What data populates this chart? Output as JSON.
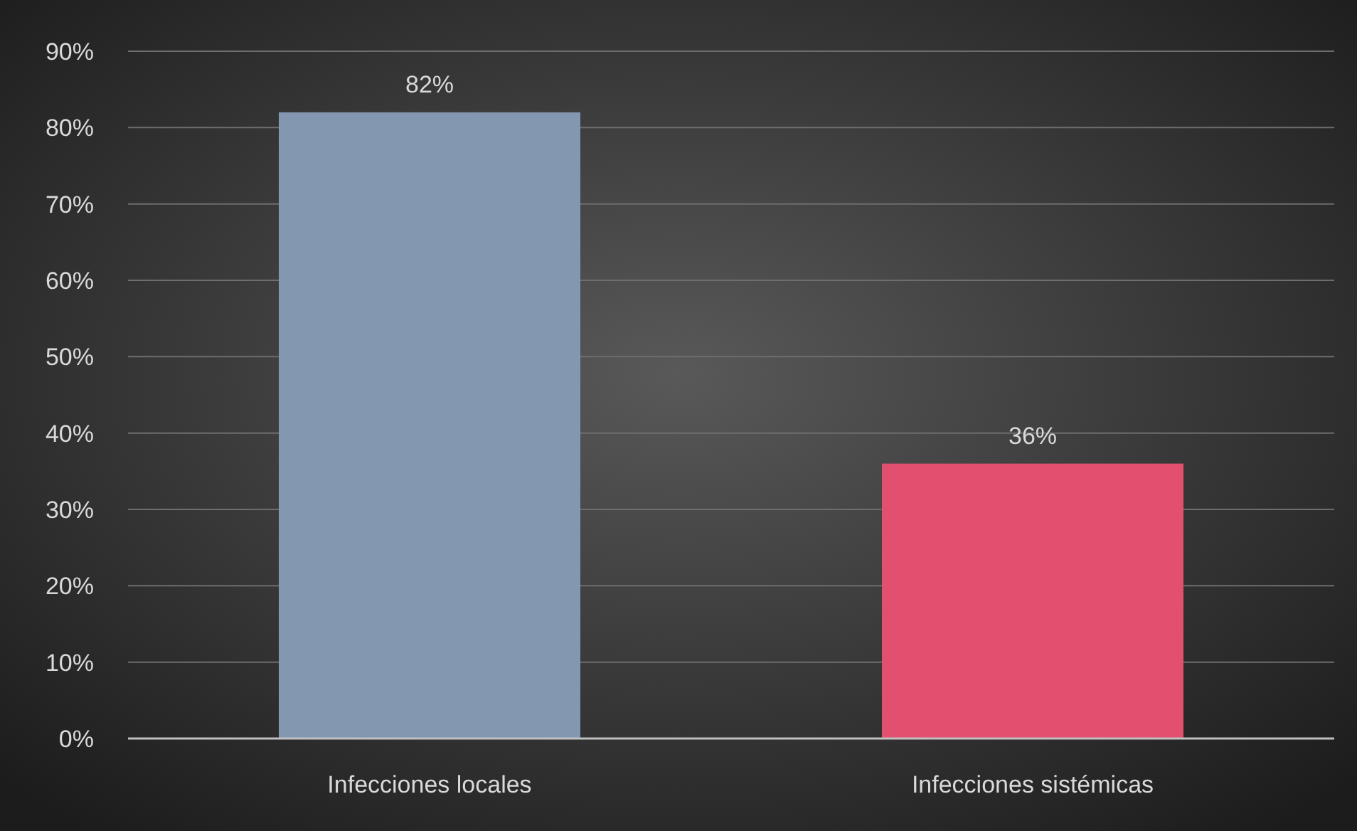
{
  "chart_data": {
    "type": "bar",
    "categories": [
      "Infecciones locales",
      "Infecciones sistémicas"
    ],
    "values": [
      82,
      36
    ],
    "colors": [
      "#8497b0",
      "#e34f6f"
    ],
    "value_labels": [
      "82%",
      "36%"
    ],
    "ylim": [
      0,
      90
    ],
    "yticks": [
      {
        "value": 0,
        "label": "0%"
      },
      {
        "value": 10,
        "label": "10%"
      },
      {
        "value": 20,
        "label": "20%"
      },
      {
        "value": 30,
        "label": "30%"
      },
      {
        "value": 40,
        "label": "40%"
      },
      {
        "value": 50,
        "label": "50%"
      },
      {
        "value": 60,
        "label": "60%"
      },
      {
        "value": 70,
        "label": "70%"
      },
      {
        "value": 80,
        "label": "80%"
      },
      {
        "value": 90,
        "label": "90%"
      }
    ],
    "grid": "y"
  }
}
